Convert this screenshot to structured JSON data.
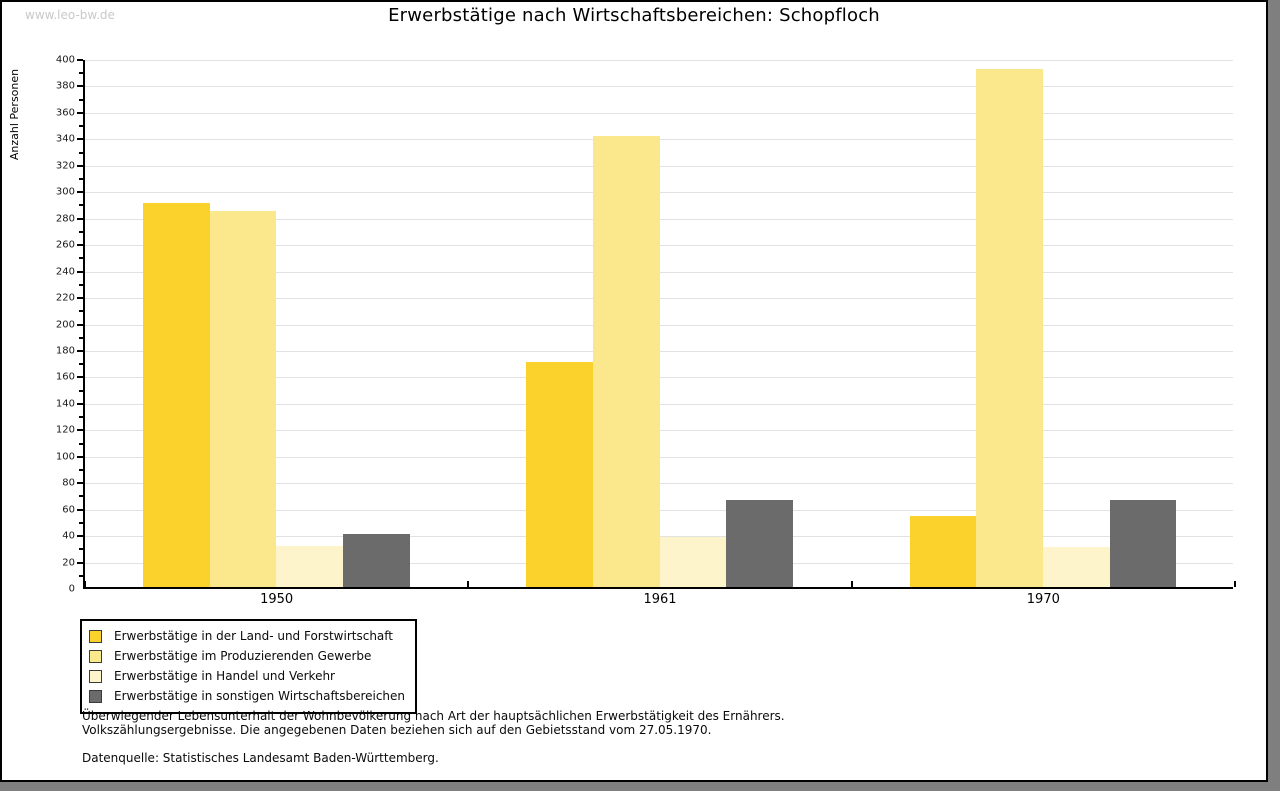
{
  "watermark": "www.leo-bw.de",
  "title": "Erwerbstätige nach Wirtschaftsbereichen: Schopfloch",
  "chart_data": {
    "type": "bar",
    "title": "Erwerbstätige nach Wirtschaftsbereichen: Schopfloch",
    "categories": [
      "1950",
      "1961",
      "1970"
    ],
    "series": [
      {
        "name": "Erwerbstätige in der Land- und Forstwirtschaft",
        "color": "#fbd22b",
        "values": [
          290,
          170,
          54
        ]
      },
      {
        "name": "Erwerbstätige im Produzierenden Gewerbe",
        "color": "#fce88c",
        "values": [
          284,
          341,
          392
        ]
      },
      {
        "name": "Erwerbstätige in Handel und Verkehr",
        "color": "#fdf4cc",
        "values": [
          31,
          38,
          30
        ]
      },
      {
        "name": "Erwerbstätige in sonstigen Wirtschaftsbereichen",
        "color": "#6b6b6b",
        "values": [
          40,
          66,
          66
        ]
      }
    ],
    "xlabel": "",
    "ylabel": "Anzahl Personen",
    "ylim": [
      0,
      400
    ],
    "ytick_major_step": 20,
    "ytick_minor_step": 10,
    "grid": true,
    "legend_position": "bottom-left",
    "gridline_color": "#e2e2e2"
  },
  "footer": {
    "line1": "Überwiegender Lebensunterhalt der Wohnbevölkerung nach Art der hauptsächlichen Erwerbstätigkeit des Ernährers.",
    "line2": "Volkszählungsergebnisse. Die angegebenen Daten beziehen sich auf den Gebietsstand vom 27.05.1970.",
    "source": "Datenquelle: Statistisches Landesamt Baden-Württemberg."
  }
}
